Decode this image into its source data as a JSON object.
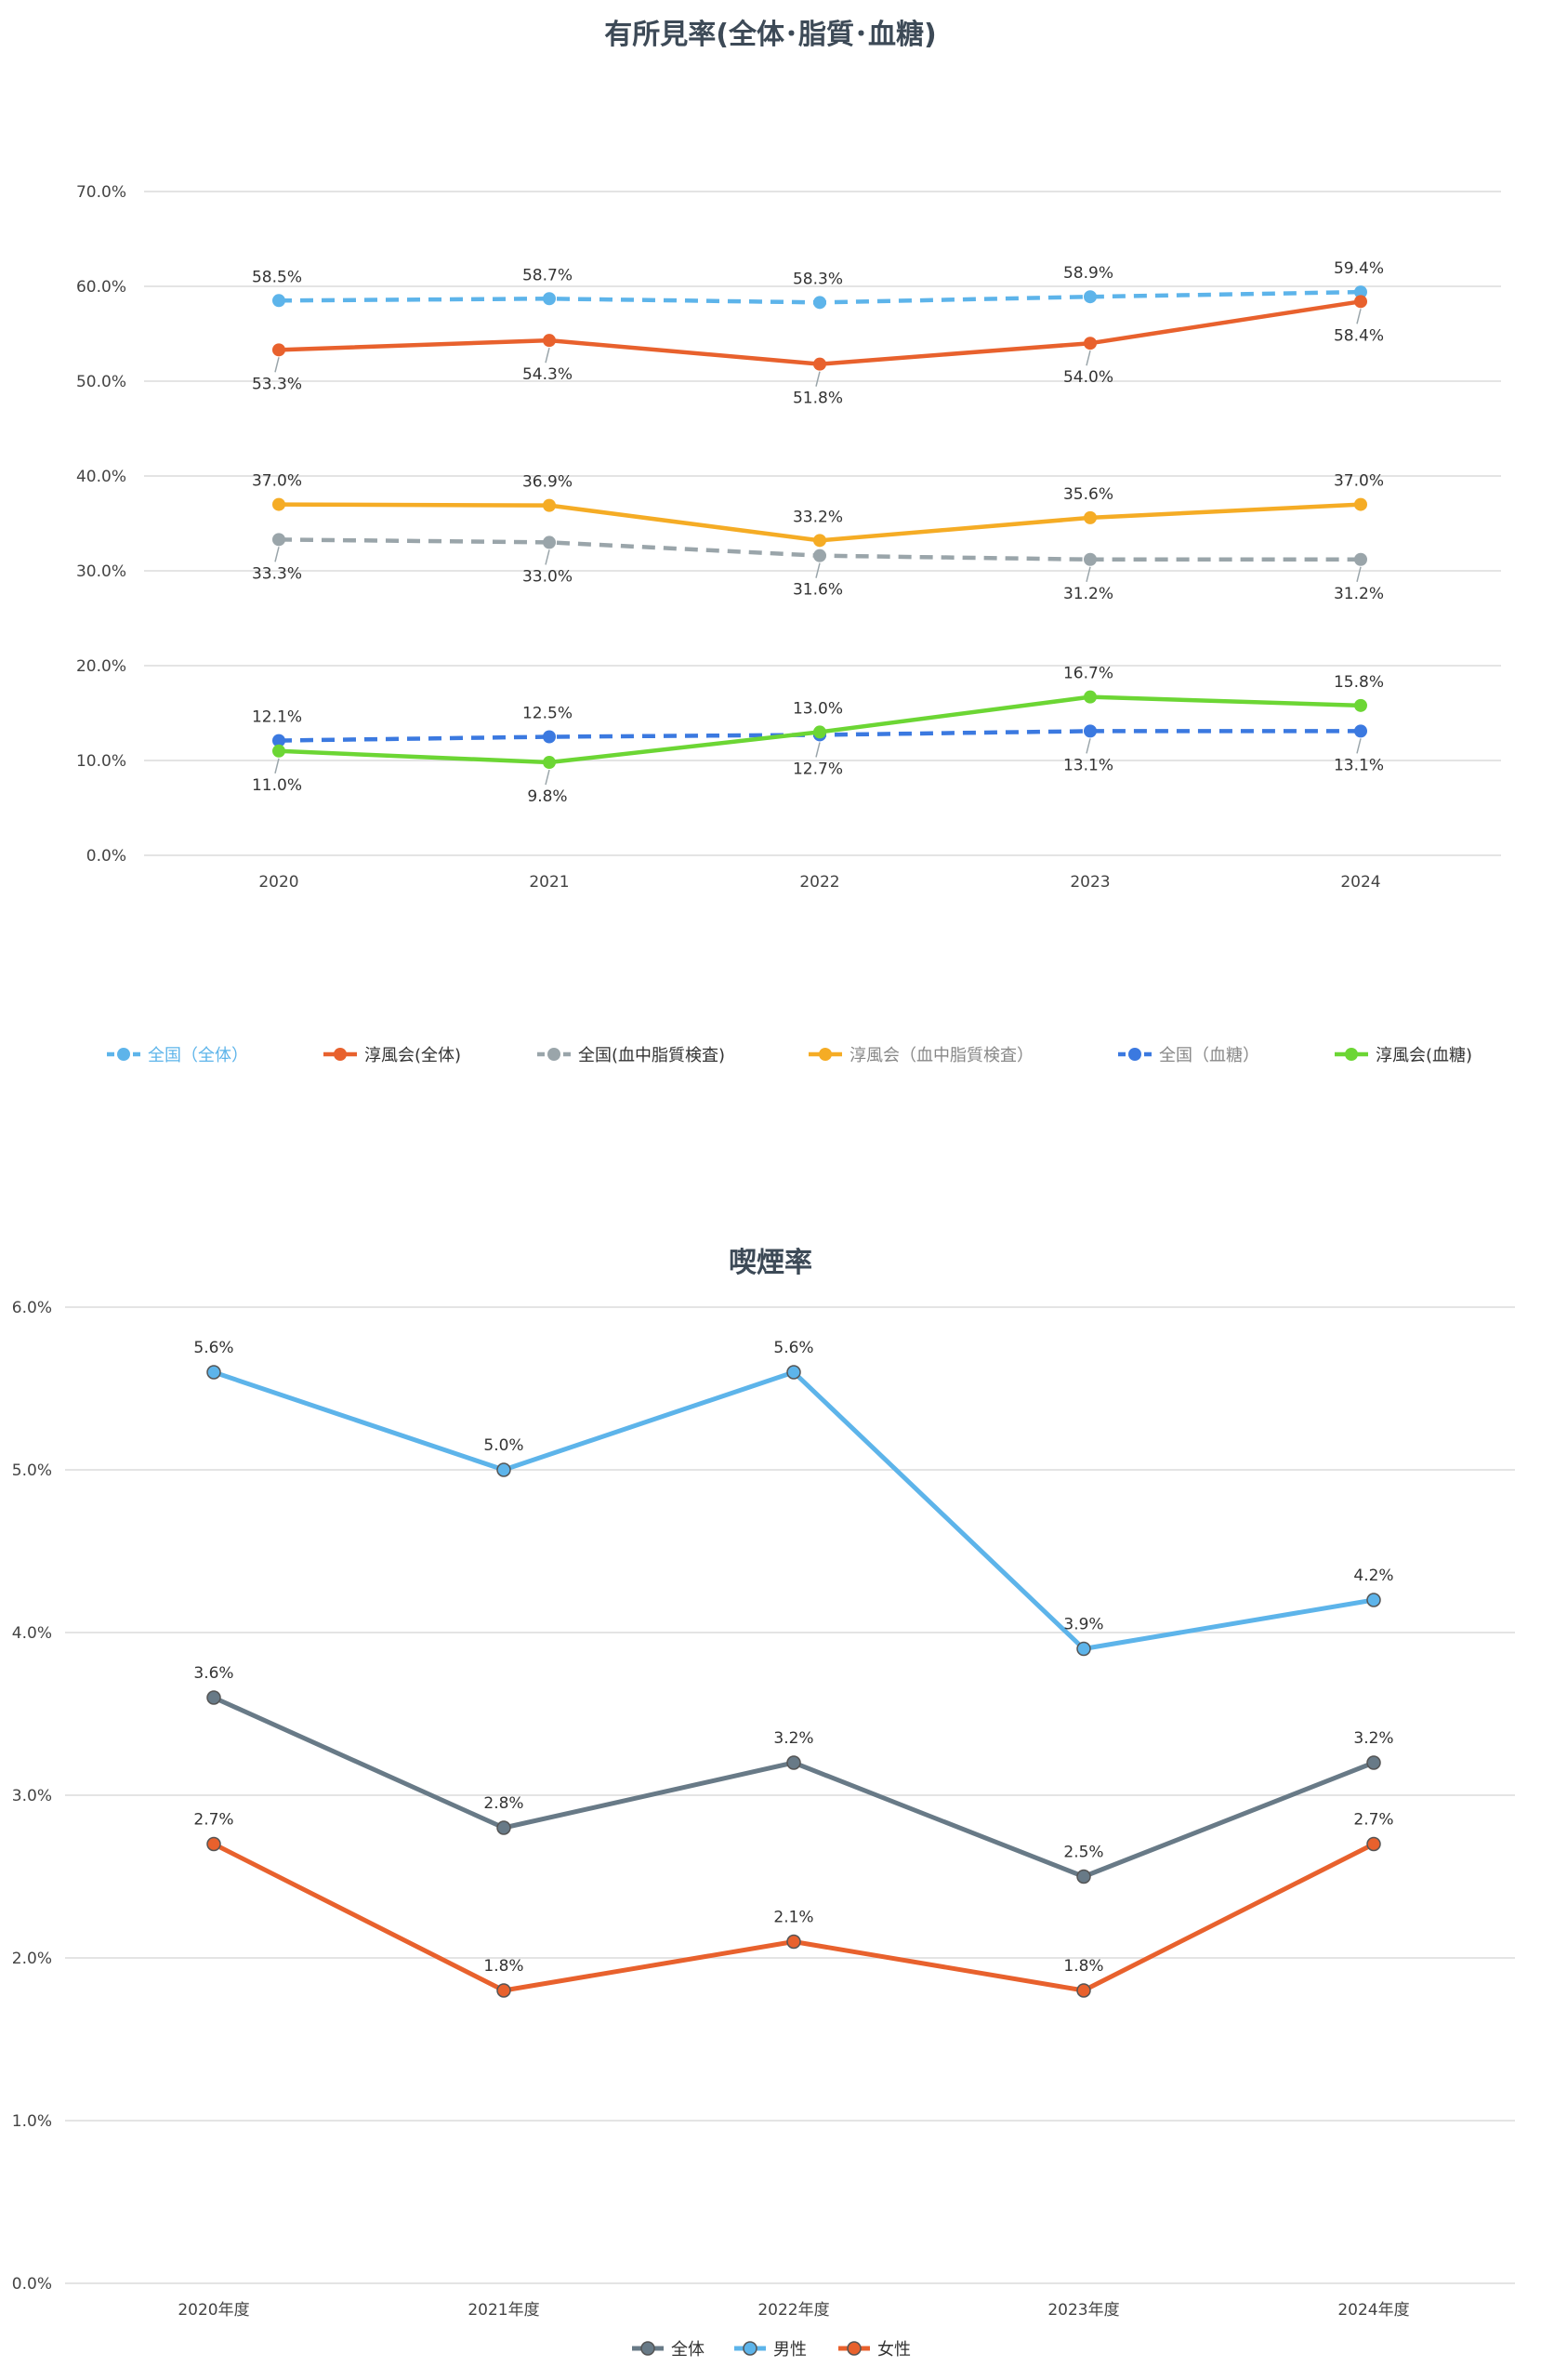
{
  "chart_data": [
    {
      "type": "line",
      "title": "有所見率(全体･脂質･血糖)",
      "categories": [
        "2020",
        "2021",
        "2022",
        "2023",
        "2024"
      ],
      "ylim": [
        0,
        70
      ],
      "yticks": [
        "0.0%",
        "10.0%",
        "20.0%",
        "30.0%",
        "40.0%",
        "50.0%",
        "60.0%",
        "70.0%"
      ],
      "grid": true,
      "legend": "bottom",
      "series": [
        {
          "name": "全国（全体）",
          "values": [
            58.5,
            58.7,
            58.3,
            58.9,
            59.4
          ],
          "labels": [
            "58.5%",
            "58.7%",
            "58.3%",
            "58.9%",
            "59.4%"
          ],
          "color": "#5db4ea",
          "dashed": true,
          "label_pos": [
            "above",
            "above",
            "above",
            "above",
            "above"
          ],
          "legend_color": "#5db4ea"
        },
        {
          "name": "淳風会(全体)",
          "values": [
            53.3,
            54.3,
            51.8,
            54.0,
            58.4
          ],
          "labels": [
            "53.3%",
            "54.3%",
            "51.8%",
            "54.0%",
            "58.4%"
          ],
          "color": "#e8612d",
          "dashed": false,
          "label_pos": [
            "below",
            "below",
            "below",
            "below",
            "below"
          ],
          "legend_color": "#333333"
        },
        {
          "name": "全国(血中脂質検査)",
          "values": [
            33.3,
            33.0,
            31.6,
            31.2,
            31.2
          ],
          "labels": [
            "33.3%",
            "33.0%",
            "31.6%",
            "31.2%",
            "31.2%"
          ],
          "color": "#9aa5aa",
          "dashed": true,
          "label_pos": [
            "below",
            "below",
            "below",
            "below",
            "below"
          ],
          "legend_color": "#333333"
        },
        {
          "name": "淳風会（血中脂質検査）",
          "values": [
            37.0,
            36.9,
            33.2,
            35.6,
            37.0
          ],
          "labels": [
            "37.0%",
            "36.9%",
            "33.2%",
            "35.6%",
            "37.0%"
          ],
          "color": "#f5ac25",
          "dashed": false,
          "label_pos": [
            "above",
            "above",
            "above",
            "above",
            "above"
          ],
          "legend_color": "#888888"
        },
        {
          "name": "全国（血糖）",
          "values": [
            12.1,
            12.5,
            12.7,
            13.1,
            13.1
          ],
          "labels": [
            "12.1%",
            "12.5%",
            "12.7%",
            "13.1%",
            "13.1%"
          ],
          "color": "#3b79e0",
          "dashed": true,
          "label_pos": [
            "above",
            "above",
            "below",
            "below",
            "below"
          ],
          "legend_color": "#888888"
        },
        {
          "name": "淳風会(血糖)",
          "values": [
            11.0,
            9.8,
            13.0,
            16.7,
            15.8
          ],
          "labels": [
            "11.0%",
            "9.8%",
            "13.0%",
            "16.7%",
            "15.8%"
          ],
          "color": "#6cd634",
          "dashed": false,
          "label_pos": [
            "below",
            "below",
            "above",
            "above",
            "above"
          ],
          "legend_color": "#333333"
        }
      ]
    },
    {
      "type": "line",
      "title": "喫煙率",
      "categories": [
        "2020年度",
        "2021年度",
        "2022年度",
        "2023年度",
        "2024年度"
      ],
      "ylim": [
        0,
        6
      ],
      "yticks": [
        "0.0%",
        "1.0%",
        "2.0%",
        "3.0%",
        "4.0%",
        "5.0%",
        "6.0%"
      ],
      "grid": true,
      "legend": "bottom",
      "series": [
        {
          "name": "全体",
          "values": [
            3.6,
            2.8,
            3.2,
            2.5,
            3.2
          ],
          "labels": [
            "3.6%",
            "2.8%",
            "3.2%",
            "2.5%",
            "3.2%"
          ],
          "color": "#687a87",
          "legend_color": "#333333"
        },
        {
          "name": "男性",
          "values": [
            5.6,
            5.0,
            5.6,
            3.9,
            4.2
          ],
          "labels": [
            "5.6%",
            "5.0%",
            "5.6%",
            "3.9%",
            "4.2%"
          ],
          "color": "#5db4ea",
          "legend_color": "#333333"
        },
        {
          "name": "女性",
          "values": [
            2.7,
            1.8,
            2.1,
            1.8,
            2.7
          ],
          "labels": [
            "2.7%",
            "1.8%",
            "2.1%",
            "1.8%",
            "2.7%"
          ],
          "color": "#e8612d",
          "legend_color": "#333333"
        }
      ]
    }
  ]
}
